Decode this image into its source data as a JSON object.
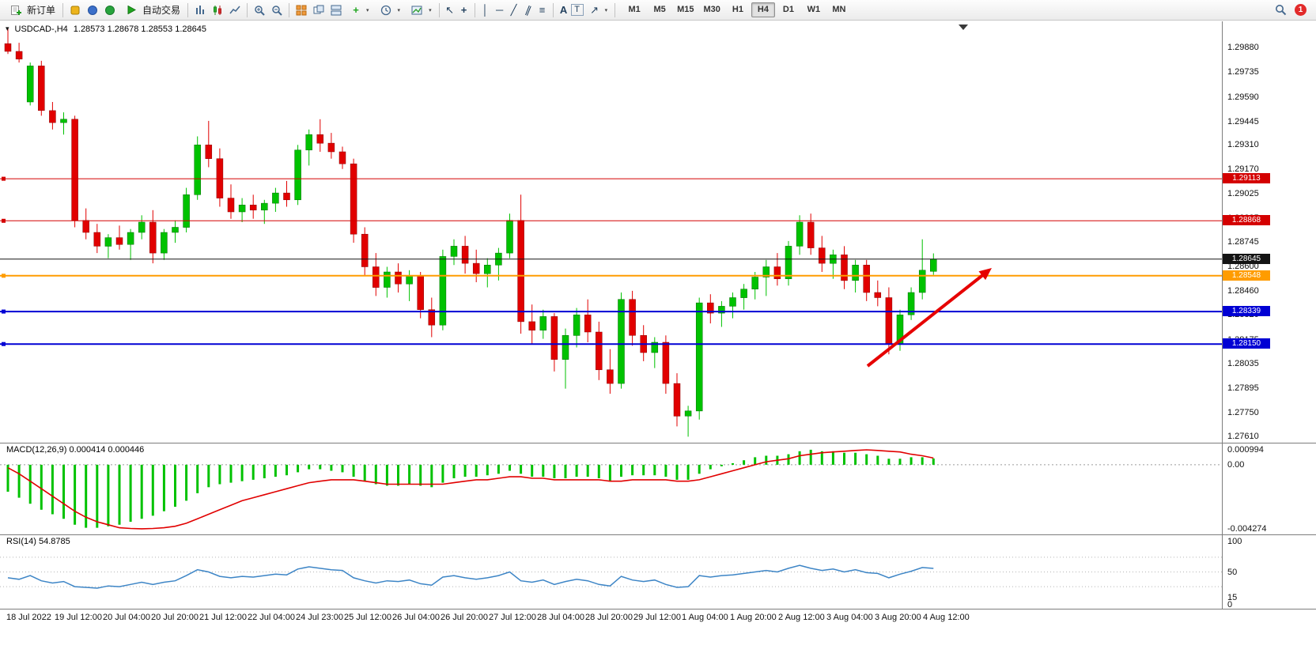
{
  "toolbar": {
    "new_order": "新订单",
    "auto_trading": "自动交易",
    "timeframes": [
      "M1",
      "M5",
      "M15",
      "M30",
      "H1",
      "H4",
      "D1",
      "W1",
      "MN"
    ],
    "active_timeframe": "H4",
    "badge": "1"
  },
  "icons": {
    "chart_menu": "▾",
    "caret": "▾",
    "plus": "+",
    "cursor": "↖",
    "crosshair": "+",
    "vertical_line": "│",
    "horizontal_line": "─",
    "trendline": "╱",
    "channel": "∥",
    "fibonacci": "≡",
    "text": "A",
    "text_label": "T",
    "arrows": "↗"
  },
  "chart_data": [
    {
      "type": "candlestick",
      "title": "USDCAD-,H4",
      "ohlc_text": "1.28573 1.28678 1.28553 1.28645",
      "open": "1.28573",
      "high": "1.28678",
      "low": "1.28553",
      "close": "1.28645",
      "price_top": 1.3003,
      "price_bottom": 1.27575,
      "x_step": 14.1,
      "up_color": "#00c200",
      "down_color": "#e10000",
      "y_ticks": [
        "1.29880",
        "1.29735",
        "1.29590",
        "1.29445",
        "1.29310",
        "1.29170",
        "1.29025",
        "1.28885",
        "1.28745",
        "1.28600",
        "1.28460",
        "1.28320",
        "1.28175",
        "1.28035",
        "1.27895",
        "1.27750",
        "1.27610"
      ],
      "x_labels": [
        "18 Jul 2022",
        "19 Jul 12:00",
        "20 Jul 04:00",
        "20 Jul 20:00",
        "21 Jul 12:00",
        "22 Jul 04:00",
        "24 Jul 23:00",
        "25 Jul 12:00",
        "26 Jul 04:00",
        "26 Jul 20:00",
        "27 Jul 12:00",
        "28 Jul 04:00",
        "28 Jul 20:00",
        "29 Jul 12:00",
        "1 Aug 04:00",
        "1 Aug 20:00",
        "2 Aug 12:00",
        "3 Aug 04:00",
        "3 Aug 20:00",
        "4 Aug 12:00"
      ],
      "hlines": [
        {
          "price": 1.29113,
          "label": "1.29113",
          "color": "#d40000",
          "width": 1
        },
        {
          "price": 1.28868,
          "label": "1.28868",
          "color": "#d40000",
          "width": 1
        },
        {
          "price": 1.28548,
          "label": "1.28548",
          "color": "#ff9c00",
          "width": 2
        },
        {
          "price": 1.28339,
          "label": "1.28339",
          "color": "#0000d4",
          "width": 2
        },
        {
          "price": 1.2815,
          "label": "1.28150",
          "color": "#0000d4",
          "width": 2
        }
      ],
      "bid": {
        "price": 1.28645,
        "label": "1.28645",
        "color": "#141414"
      },
      "arrow": {
        "from": [
          1097,
          436
        ],
        "to": [
          1254,
          312
        ],
        "color": "#e60000"
      },
      "candles": [
        [
          1.299,
          1.2999,
          1.2984,
          1.29855
        ],
        [
          1.29855,
          1.29905,
          1.2979,
          1.2981
        ],
        [
          1.2956,
          1.2979,
          1.2954,
          1.2977
        ],
        [
          1.2977,
          1.298,
          1.2948,
          1.2951
        ],
        [
          1.2951,
          1.2956,
          1.294,
          1.2944
        ],
        [
          1.2944,
          1.295,
          1.2937,
          1.2946
        ],
        [
          1.2946,
          1.2948,
          1.2883,
          1.2887
        ],
        [
          1.2887,
          1.2894,
          1.2876,
          1.288
        ],
        [
          1.288,
          1.2885,
          1.2868,
          1.2872
        ],
        [
          1.2872,
          1.2879,
          1.2865,
          1.2877
        ],
        [
          1.2877,
          1.2884,
          1.287,
          1.2873
        ],
        [
          1.2873,
          1.2882,
          1.2864,
          1.288
        ],
        [
          1.288,
          1.289,
          1.2876,
          1.2886
        ],
        [
          1.2886,
          1.2893,
          1.2862,
          1.2868
        ],
        [
          1.2868,
          1.2882,
          1.2864,
          1.288
        ],
        [
          1.288,
          1.2887,
          1.2874,
          1.2883
        ],
        [
          1.2883,
          1.2906,
          1.288,
          1.2902
        ],
        [
          1.2902,
          1.2936,
          1.2899,
          1.2931
        ],
        [
          1.2931,
          1.2945,
          1.2918,
          1.2923
        ],
        [
          1.2923,
          1.2929,
          1.2895,
          1.29
        ],
        [
          1.29,
          1.2908,
          1.2888,
          1.2892
        ],
        [
          1.2892,
          1.29,
          1.2886,
          1.2896
        ],
        [
          1.2896,
          1.2902,
          1.2888,
          1.2893
        ],
        [
          1.2893,
          1.2899,
          1.2885,
          1.2897
        ],
        [
          1.2897,
          1.2906,
          1.2892,
          1.2903
        ],
        [
          1.2903,
          1.291,
          1.2895,
          1.2899
        ],
        [
          1.2899,
          1.2931,
          1.2896,
          1.2928
        ],
        [
          1.2928,
          1.294,
          1.2919,
          1.2937
        ],
        [
          1.2937,
          1.2946,
          1.2927,
          1.2932
        ],
        [
          1.2932,
          1.2938,
          1.2923,
          1.2927
        ],
        [
          1.2927,
          1.293,
          1.2917,
          1.292
        ],
        [
          1.292,
          1.2923,
          1.2874,
          1.2879
        ],
        [
          1.2879,
          1.2883,
          1.2855,
          1.286
        ],
        [
          1.286,
          1.2868,
          1.2843,
          1.2848
        ],
        [
          1.2848,
          1.286,
          1.2842,
          1.2857
        ],
        [
          1.2857,
          1.2862,
          1.2845,
          1.285
        ],
        [
          1.285,
          1.2858,
          1.284,
          1.2855
        ],
        [
          1.2855,
          1.2857,
          1.283,
          1.2835
        ],
        [
          1.2835,
          1.2842,
          1.2819,
          1.2826
        ],
        [
          1.2826,
          1.287,
          1.2823,
          1.2866
        ],
        [
          1.2866,
          1.2876,
          1.2861,
          1.2872
        ],
        [
          1.2872,
          1.2878,
          1.2856,
          1.2862
        ],
        [
          1.2862,
          1.287,
          1.2851,
          1.2856
        ],
        [
          1.2856,
          1.2865,
          1.2848,
          1.2861
        ],
        [
          1.2861,
          1.2871,
          1.2852,
          1.2868
        ],
        [
          1.2868,
          1.2891,
          1.2865,
          1.2887
        ],
        [
          1.2887,
          1.2902,
          1.2821,
          1.2828
        ],
        [
          1.2828,
          1.2838,
          1.2815,
          1.2823
        ],
        [
          1.2823,
          1.2835,
          1.2818,
          1.2831
        ],
        [
          1.2831,
          1.2833,
          1.2799,
          1.2806
        ],
        [
          1.2806,
          1.2824,
          1.2789,
          1.282
        ],
        [
          1.282,
          1.2836,
          1.2813,
          1.2832
        ],
        [
          1.2832,
          1.2841,
          1.2816,
          1.2822
        ],
        [
          1.2822,
          1.2828,
          1.2794,
          1.28
        ],
        [
          1.28,
          1.2812,
          1.2786,
          1.2792
        ],
        [
          1.2792,
          1.2845,
          1.2789,
          1.2841
        ],
        [
          1.2841,
          1.2846,
          1.2814,
          1.282
        ],
        [
          1.282,
          1.2826,
          1.2805,
          1.281
        ],
        [
          1.281,
          1.2819,
          1.2801,
          1.2816
        ],
        [
          1.2816,
          1.282,
          1.2786,
          1.2792
        ],
        [
          1.2792,
          1.2798,
          1.2767,
          1.2773
        ],
        [
          1.2773,
          1.2779,
          1.2761,
          1.2776
        ],
        [
          1.2776,
          1.2842,
          1.2771,
          1.2839
        ],
        [
          1.2839,
          1.2844,
          1.2827,
          1.2833
        ],
        [
          1.2833,
          1.284,
          1.2825,
          1.2837
        ],
        [
          1.2837,
          1.2845,
          1.283,
          1.2842
        ],
        [
          1.2842,
          1.285,
          1.2835,
          1.2847
        ],
        [
          1.2847,
          1.2857,
          1.2841,
          1.2854
        ],
        [
          1.2854,
          1.2864,
          1.2843,
          1.286
        ],
        [
          1.286,
          1.2868,
          1.2849,
          1.2853
        ],
        [
          1.2853,
          1.2875,
          1.2849,
          1.2872
        ],
        [
          1.2872,
          1.289,
          1.2867,
          1.2886
        ],
        [
          1.2886,
          1.2891,
          1.2867,
          1.2871
        ],
        [
          1.2871,
          1.2878,
          1.2857,
          1.2862
        ],
        [
          1.2862,
          1.287,
          1.2853,
          1.2867
        ],
        [
          1.2867,
          1.2872,
          1.2847,
          1.2852
        ],
        [
          1.2852,
          1.2864,
          1.2845,
          1.2861
        ],
        [
          1.2861,
          1.2864,
          1.284,
          1.2845
        ],
        [
          1.2845,
          1.2852,
          1.2837,
          1.2842
        ],
        [
          1.2842,
          1.2848,
          1.2809,
          1.2815
        ],
        [
          1.2815,
          1.2835,
          1.2811,
          1.2832
        ],
        [
          1.2832,
          1.2848,
          1.2829,
          1.2845
        ],
        [
          1.2845,
          1.2876,
          1.2841,
          1.2858
        ],
        [
          1.28573,
          1.28678,
          1.28553,
          1.28645
        ]
      ]
    },
    {
      "type": "macd",
      "label": "MACD(12,26,9) 0.000414 0.000446",
      "macd_value": 0.000414,
      "signal_value": 0.000446,
      "y_max": 0.000994,
      "y_min": -0.004274,
      "y_ticks": [
        {
          "label": "0.000994",
          "v": 0.000994
        },
        {
          "label": "0.00",
          "v": 0
        },
        {
          "label": "-0.004274",
          "v": -0.004274
        }
      ],
      "histogram_color": "#00c200",
      "signal_color": "#e10000",
      "histogram": [
        -0.0018,
        -0.0022,
        -0.0026,
        -0.003,
        -0.0033,
        -0.0036,
        -0.004,
        -0.0042,
        -0.0042,
        -0.0041,
        -0.004,
        -0.0038,
        -0.0036,
        -0.0034,
        -0.0031,
        -0.0028,
        -0.0024,
        -0.0019,
        -0.0015,
        -0.0013,
        -0.0012,
        -0.0011,
        -0.001,
        -0.0009,
        -0.0008,
        -0.0007,
        -0.0005,
        -0.0003,
        -0.0003,
        -0.0004,
        -0.0005,
        -0.0008,
        -0.0011,
        -0.0013,
        -0.0014,
        -0.0014,
        -0.0013,
        -0.0014,
        -0.0015,
        -0.0012,
        -0.0009,
        -0.0008,
        -0.0008,
        -0.0007,
        -0.0006,
        -0.0004,
        -0.0006,
        -0.0008,
        -0.0008,
        -0.0009,
        -0.0009,
        -0.0008,
        -0.0008,
        -0.0009,
        -0.0011,
        -0.0008,
        -0.0007,
        -0.0007,
        -0.0007,
        -0.0008,
        -0.001,
        -0.001,
        -0.0006,
        -0.0003,
        -0.0001,
        0.0001,
        0.0003,
        0.0005,
        0.0006,
        0.0006,
        0.0007,
        0.0009,
        0.001,
        0.0009,
        0.0009,
        0.0008,
        0.0008,
        0.0007,
        0.0006,
        0.0004,
        0.0004,
        0.0005,
        0.0005,
        0.000414
      ],
      "signal": [
        -0.0002,
        -0.0006,
        -0.0011,
        -0.0016,
        -0.0021,
        -0.0026,
        -0.0031,
        -0.0035,
        -0.0038,
        -0.004,
        -0.0042,
        -0.00425,
        -0.00427,
        -0.00425,
        -0.0042,
        -0.0041,
        -0.0039,
        -0.0036,
        -0.0033,
        -0.003,
        -0.0027,
        -0.0024,
        -0.0022,
        -0.002,
        -0.0018,
        -0.0016,
        -0.0014,
        -0.0012,
        -0.0011,
        -0.001,
        -0.001,
        -0.001,
        -0.0011,
        -0.0012,
        -0.0013,
        -0.0013,
        -0.0013,
        -0.0013,
        -0.0013,
        -0.0013,
        -0.0012,
        -0.0011,
        -0.001,
        -0.001,
        -0.0009,
        -0.0008,
        -0.0008,
        -0.0009,
        -0.0009,
        -0.001,
        -0.001,
        -0.001,
        -0.001,
        -0.001,
        -0.0011,
        -0.0011,
        -0.001,
        -0.001,
        -0.001,
        -0.001,
        -0.0011,
        -0.0011,
        -0.001,
        -0.0008,
        -0.0006,
        -0.0004,
        -0.0002,
        0.0,
        0.0002,
        0.0003,
        0.0004,
        0.0006,
        0.0007,
        0.0008,
        0.00085,
        0.0009,
        0.00095,
        0.000994,
        0.00095,
        0.0009,
        0.00085,
        0.0007,
        0.0006,
        0.000446
      ]
    },
    {
      "type": "rsi",
      "label": "RSI(14) 54.8785",
      "value": 54.8785,
      "color": "#3d85c6",
      "y_ticks": [
        {
          "label": "100",
          "v": 100
        },
        {
          "label": "50",
          "v": 50
        },
        {
          "label": "15",
          "v": 15
        },
        {
          "label": "0",
          "v": 0
        }
      ],
      "levels": [
        70,
        50,
        30
      ],
      "series": [
        42,
        40,
        45,
        38,
        35,
        37,
        30,
        29,
        28,
        31,
        30,
        33,
        36,
        33,
        36,
        38,
        45,
        53,
        50,
        44,
        42,
        44,
        43,
        45,
        47,
        46,
        54,
        57,
        55,
        53,
        52,
        42,
        38,
        35,
        38,
        37,
        39,
        34,
        32,
        43,
        45,
        42,
        40,
        42,
        45,
        50,
        38,
        36,
        39,
        33,
        37,
        40,
        38,
        33,
        31,
        44,
        39,
        37,
        39,
        33,
        29,
        30,
        45,
        43,
        45,
        46,
        48,
        50,
        52,
        50,
        55,
        59,
        55,
        52,
        54,
        50,
        53,
        49,
        48,
        42,
        47,
        51,
        56,
        54.8785
      ]
    }
  ]
}
